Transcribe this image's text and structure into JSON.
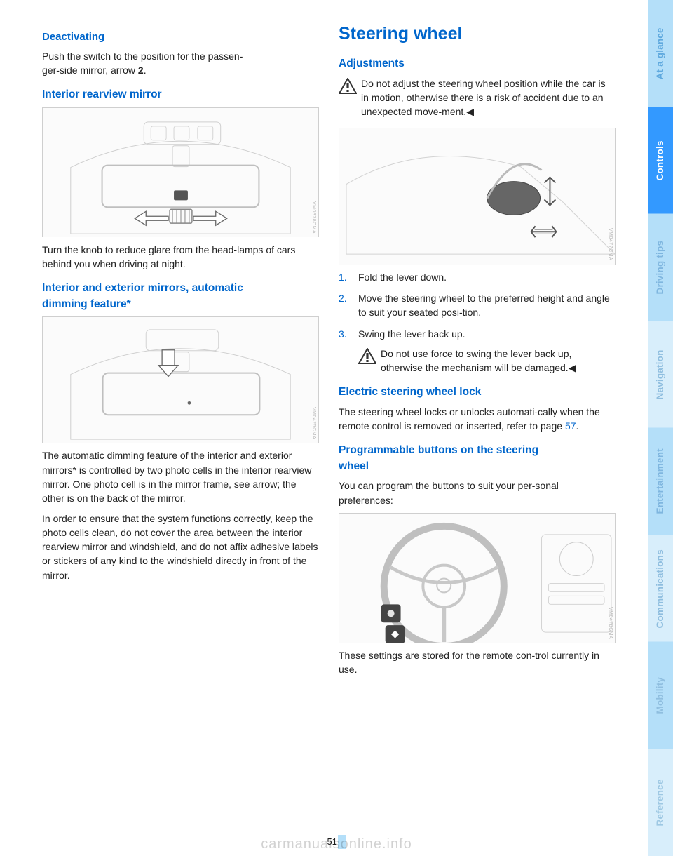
{
  "left": {
    "h_deactivating": "Deactivating",
    "p_deactivating_a": "Push the switch to the position for the passen-",
    "p_deactivating_b": "ger-side mirror, arrow ",
    "p_deactivating_num": "2",
    "p_deactivating_c": ".",
    "h_interior": "Interior rearview mirror",
    "img1_code": "VM0378CMA",
    "p_interior": "Turn the knob to reduce glare from the head-lamps of cars behind you when driving at night.",
    "h_autodim_a": "Interior and exterior mirrors, automatic",
    "h_autodim_b": "dimming feature*",
    "img2_code": "VM0425CMA",
    "p_autodim1": "The automatic dimming feature of the interior and exterior mirrors* is controlled by two photo cells in the interior rearview mirror. One photo cell is in the mirror frame, see arrow; the other is on the back of the mirror.",
    "p_autodim2": "In order to ensure that the system functions correctly, keep the photo cells clean, do not cover the area between the interior rearview mirror and windshield, and do not affix adhesive labels or stickers of any kind to the windshield directly in front of the mirror."
  },
  "right": {
    "h_steering": "Steering wheel",
    "h_adjust": "Adjustments",
    "warn1": "Do not adjust the steering wheel position while the car is in motion, otherwise there is a risk of accident due to an unexpected move-ment.◀",
    "img3_code": "VM0477CMA",
    "step1_n": "1.",
    "step1": "Fold the lever down.",
    "step2_n": "2.",
    "step2": "Move the steering wheel to the preferred height and angle to suit your seated posi-tion.",
    "step3_n": "3.",
    "step3": "Swing the lever back up.",
    "warn2": "Do not use force to swing the lever back up, otherwise the mechanism will be damaged.◀",
    "h_elock": "Electric steering wheel lock",
    "p_elock_a": "The steering wheel locks or unlocks automati-cally when the remote control is removed or inserted, refer to page ",
    "p_elock_page": "57",
    "p_elock_b": ".",
    "h_prog_a": "Programmable buttons on the steering",
    "h_prog_b": "wheel",
    "p_prog": "You can program the buttons to suit your per-sonal preferences:",
    "img4_code": "VM0478CMA",
    "p_stored": "These settings are stored for the remote con-trol currently in use."
  },
  "tabs": [
    {
      "label": "At a glance",
      "bg": "#b4dff9",
      "fg": "#5fa9de"
    },
    {
      "label": "Controls",
      "bg": "#3399ff",
      "fg": "#ffffff"
    },
    {
      "label": "Driving tips",
      "bg": "#b4dff9",
      "fg": "#7fb6df"
    },
    {
      "label": "Navigation",
      "bg": "#d8eefb",
      "fg": "#8fbedf"
    },
    {
      "label": "Entertainment",
      "bg": "#b4dff9",
      "fg": "#7fb6df"
    },
    {
      "label": "Communications",
      "bg": "#d8eefb",
      "fg": "#8fbedf"
    },
    {
      "label": "Mobility",
      "bg": "#b4dff9",
      "fg": "#8fbedf"
    },
    {
      "label": "Reference",
      "bg": "#d8eefb",
      "fg": "#9ec8e3"
    }
  ],
  "page_number": "51",
  "watermark": "carmanualsonline.info",
  "colors": {
    "heading_blue": "#0066cc"
  }
}
